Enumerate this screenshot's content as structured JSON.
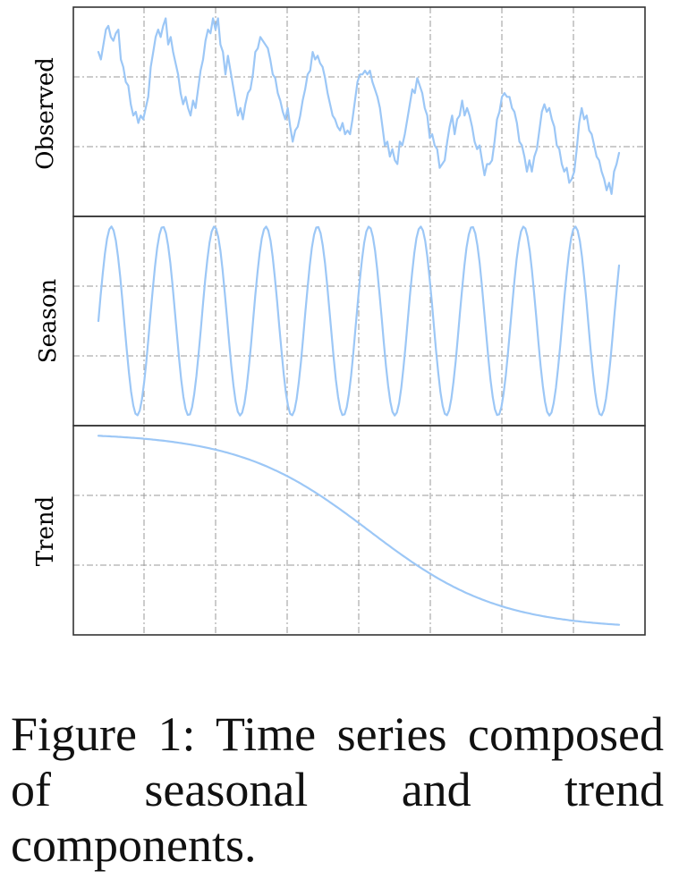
{
  "chart_data": {
    "type": "line",
    "layout": "three vertically stacked panels sharing the x axis",
    "x_tick_labels": "none",
    "y_tick_labels": "none",
    "grid": true,
    "legend": "none",
    "panels": [
      {
        "ylabel": "Observed",
        "ylim": [
          -2.8,
          2.8
        ],
        "series": [
          {
            "values": [
              1.6,
              1.4,
              1.8,
              2.2,
              2.3,
              2.0,
              1.9,
              2.1,
              2.2,
              1.4,
              1.2,
              0.8,
              0.7,
              0.2,
              -0.1,
              0.0,
              -0.3,
              -0.1,
              -0.2,
              0.1,
              0.4,
              1.2,
              1.6,
              2.0,
              2.2,
              2.0,
              2.3,
              2.5,
              1.8,
              2.0,
              1.6,
              1.3,
              1.0,
              0.5,
              0.2,
              0.4,
              0.1,
              -0.1,
              0.3,
              0.1,
              0.6,
              1.1,
              1.4,
              1.9,
              2.2,
              2.1,
              2.5,
              2.2,
              2.5,
              1.8,
              1.6,
              1.0,
              1.5,
              1.1,
              0.7,
              0.3,
              -0.1,
              0.1,
              -0.2,
              0.2,
              0.5,
              0.6,
              1.0,
              1.6,
              1.7,
              2.0,
              1.9,
              1.8,
              1.7,
              1.4,
              1.0,
              0.9,
              0.5,
              0.3,
              0.0,
              -0.2,
              0.1,
              -0.4,
              -0.8,
              -0.5,
              -0.4,
              -0.1,
              0.3,
              0.6,
              1.0,
              1.1,
              1.6,
              1.4,
              1.5,
              1.3,
              1.2,
              0.9,
              0.5,
              0.2,
              -0.1,
              -0.2,
              -0.4,
              -0.5,
              -0.3,
              -0.6,
              -0.5,
              -0.6,
              -0.2,
              0.3,
              0.8,
              1.0,
              1.0,
              1.1,
              1.0,
              1.1,
              0.8,
              0.6,
              0.4,
              0.1,
              -0.4,
              -0.9,
              -0.8,
              -1.2,
              -1.0,
              -1.3,
              -1.4,
              -0.8,
              -0.9,
              -0.6,
              -0.2,
              0.2,
              0.6,
              0.5,
              0.9,
              0.7,
              0.5,
              0.1,
              -0.1,
              -0.7,
              -0.6,
              -0.9,
              -1.0,
              -1.5,
              -1.4,
              -1.3,
              -0.8,
              -0.4,
              -0.1,
              -0.6,
              -0.2,
              -0.1,
              0.3,
              -0.1,
              0.1,
              -0.1,
              -0.4,
              -0.8,
              -1.0,
              -0.9,
              -1.3,
              -1.7,
              -1.4,
              -1.4,
              -1.3,
              -0.8,
              -0.2,
              0.0,
              0.4,
              0.5,
              0.4,
              0.4,
              0.1,
              0.0,
              -0.3,
              -0.8,
              -0.9,
              -1.2,
              -1.6,
              -1.3,
              -1.6,
              -1.2,
              -1.0,
              -0.5,
              0.0,
              0.2,
              0.0,
              0.1,
              -0.2,
              -0.4,
              -0.9,
              -1.0,
              -1.4,
              -1.6,
              -1.5,
              -1.9,
              -1.8,
              -1.6,
              -1.0,
              -0.3,
              0.1,
              -0.2,
              -0.1,
              -0.5,
              -0.6,
              -0.9,
              -1.2,
              -1.3,
              -1.6,
              -1.8,
              -2.1,
              -1.9,
              -2.2,
              -1.6,
              -1.4,
              -1.1
            ]
          }
        ]
      },
      {
        "ylabel": "Season",
        "ylim": [
          -1.55,
          1.55
        ],
        "series": [
          {
            "function": "sine",
            "amplitude": 1.4,
            "cycles": 10.1,
            "start_value": 0.0
          }
        ]
      },
      {
        "ylabel": "Trend",
        "ylim": [
          -1.55,
          1.55
        ],
        "series": [
          {
            "function": "logistic decline",
            "start_value": 1.4,
            "end_value": -1.4
          }
        ]
      }
    ]
  },
  "caption": "Figure 1:  Time series com­posed of seasonal and trend components.",
  "colors": {
    "series": "#9cc7f6",
    "grid": "#9a9a9a",
    "frame": "#333333"
  }
}
